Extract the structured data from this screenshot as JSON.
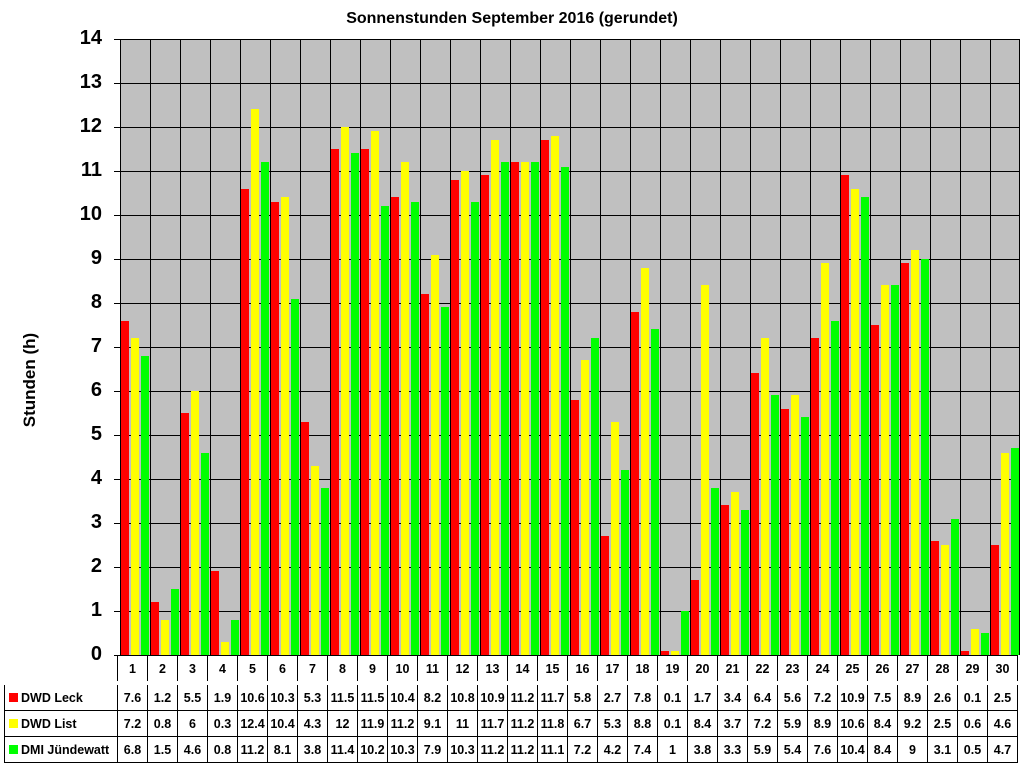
{
  "chart_data": {
    "type": "bar",
    "title": "Sonnenstunden September 2016 (gerundet)",
    "xlabel": "",
    "ylabel": "Stunden (h)",
    "ylim": [
      0,
      14
    ],
    "yticks": [
      0,
      1,
      2,
      3,
      4,
      5,
      6,
      7,
      8,
      9,
      10,
      11,
      12,
      13,
      14
    ],
    "grid": true,
    "legend_position": "data-table-bottom",
    "categories": [
      "1",
      "2",
      "3",
      "4",
      "5",
      "6",
      "7",
      "8",
      "9",
      "10",
      "11",
      "12",
      "13",
      "14",
      "15",
      "16",
      "17",
      "18",
      "19",
      "20",
      "21",
      "22",
      "23",
      "24",
      "25",
      "26",
      "27",
      "28",
      "29",
      "30"
    ],
    "series": [
      {
        "name": "DWD Leck",
        "color": "#ff0000",
        "values": [
          7.6,
          1.2,
          5.5,
          1.9,
          10.6,
          10.3,
          5.3,
          11.5,
          11.5,
          10.4,
          8.2,
          10.8,
          10.9,
          11.2,
          11.7,
          5.8,
          2.7,
          7.8,
          0.1,
          1.7,
          3.4,
          6.4,
          5.6,
          7.2,
          10.9,
          7.5,
          8.9,
          2.6,
          0.1,
          2.5
        ]
      },
      {
        "name": "DWD List",
        "color": "#ffff00",
        "values": [
          7.2,
          0.8,
          6,
          0.3,
          12.4,
          10.4,
          4.3,
          12,
          11.9,
          11.2,
          9.1,
          11,
          11.7,
          11.2,
          11.8,
          6.7,
          5.3,
          8.8,
          0.1,
          8.4,
          3.7,
          7.2,
          5.9,
          8.9,
          10.6,
          8.4,
          9.2,
          2.5,
          0.6,
          4.6
        ]
      },
      {
        "name": "DMI Jündewatt",
        "color": "#00ff00",
        "values": [
          6.8,
          1.5,
          4.6,
          0.8,
          11.2,
          8.1,
          3.8,
          11.4,
          10.2,
          10.3,
          7.9,
          10.3,
          11.2,
          11.2,
          11.1,
          7.2,
          4.2,
          7.4,
          1,
          3.8,
          3.3,
          5.9,
          5.4,
          7.6,
          10.4,
          8.4,
          9,
          3.1,
          0.5,
          4.7
        ]
      }
    ]
  },
  "colors": {
    "plot_bg": "#c0c0c0"
  }
}
